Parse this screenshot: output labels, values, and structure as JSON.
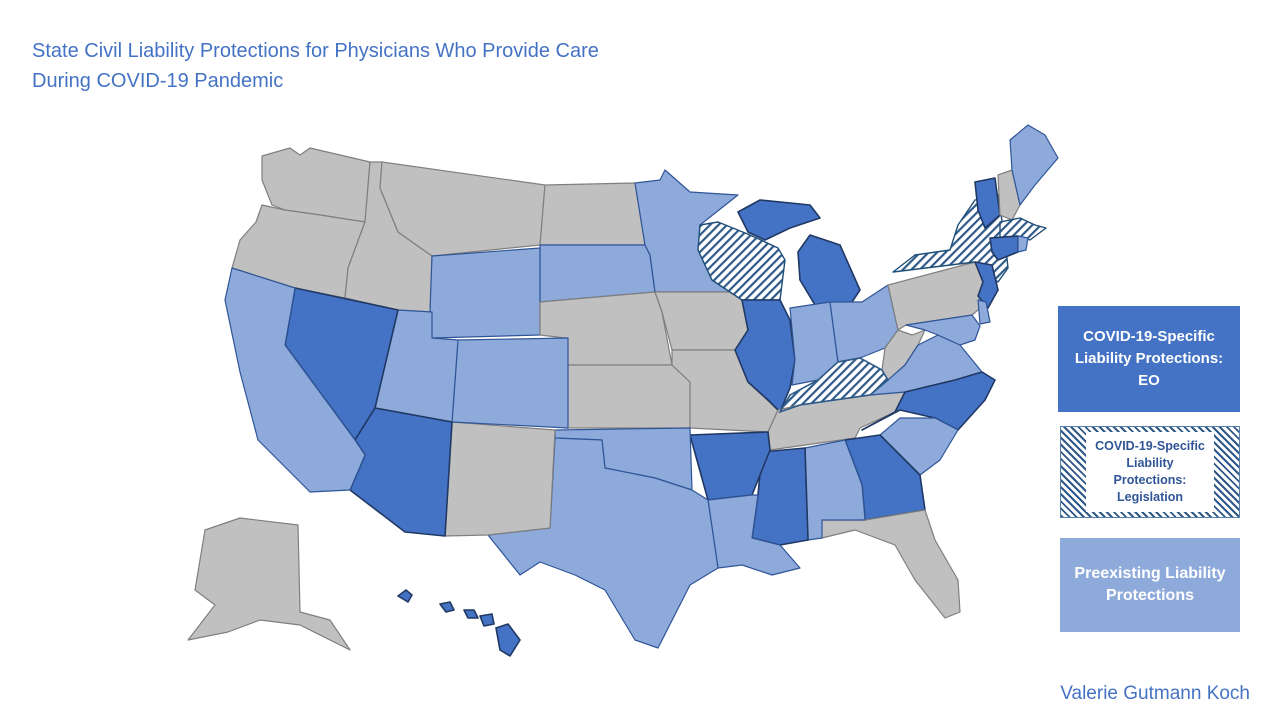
{
  "title": {
    "line1": "State Civil Liability Protections for Physicians Who Provide Care",
    "line2": "During COVID-19 Pandemic"
  },
  "legend": {
    "eo": "COVID-19-Specific Liability Protections: EO",
    "legislation": "COVID-19-Specific Liability Protections: Legislation",
    "preexisting": "Preexisting Liability Protections"
  },
  "author": "Valerie Gutmann Koch",
  "colors": {
    "eo": "#4472c4",
    "legislation_hatch": "#2e5a8a",
    "preexisting": "#8eaadb",
    "none": "#c0c0c0",
    "title_text": "#4472c4"
  },
  "map_data": {
    "categories": [
      "eo",
      "legislation",
      "preexisting",
      "none"
    ],
    "states": {
      "WA": "none",
      "OR": "none",
      "ID": "none",
      "MT": "none",
      "ND": "none",
      "NE": "none",
      "KS": "none",
      "MO": "none",
      "IA": "none",
      "NM": "none",
      "TN": "none",
      "FL": "none",
      "WV": "none",
      "PA": "none",
      "NH": "none",
      "AK": "none",
      "NV": "eo",
      "AZ": "eo",
      "IL": "eo",
      "MI": "eo",
      "AR": "eo",
      "MS": "eo",
      "GA": "eo",
      "NC": "eo",
      "VT": "eo",
      "CT": "eo",
      "NJ": "eo",
      "HI": "eo",
      "WI": "legislation",
      "KY": "legislation",
      "NY": "legislation",
      "MA": "legislation",
      "CA": "preexisting",
      "UT": "preexisting",
      "WY": "preexisting",
      "CO": "preexisting",
      "SD": "preexisting",
      "MN": "preexisting",
      "OK": "preexisting",
      "TX": "preexisting",
      "LA": "preexisting",
      "AL": "preexisting",
      "SC": "preexisting",
      "VA": "preexisting",
      "IN": "preexisting",
      "OH": "preexisting",
      "MD": "preexisting",
      "DE": "preexisting",
      "ME": "preexisting",
      "RI": "preexisting"
    }
  }
}
